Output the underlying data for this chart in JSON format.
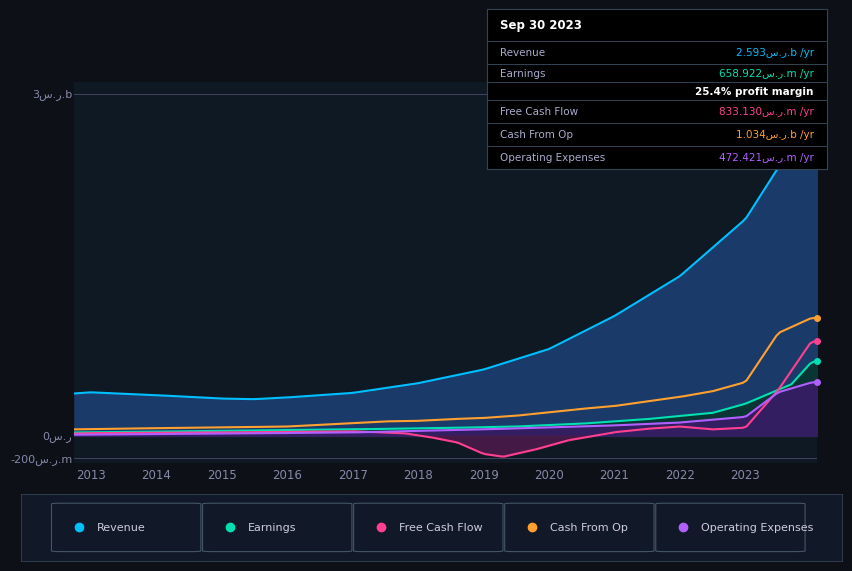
{
  "background_color": "#0d1117",
  "plot_bg_color": "#0f1923",
  "ylabel_top": "3س.ر.b",
  "ylabel_zero": "0س.ر",
  "ylabel_neg": "-200س.ر.m",
  "x_labels": [
    "2013",
    "2014",
    "2015",
    "2016",
    "2017",
    "2018",
    "2019",
    "2020",
    "2021",
    "2022",
    "2023"
  ],
  "legend": [
    {
      "label": "Revenue",
      "color": "#00bfff"
    },
    {
      "label": "Earnings",
      "color": "#00e0b0"
    },
    {
      "label": "Free Cash Flow",
      "color": "#ff4090"
    },
    {
      "label": "Cash From Op",
      "color": "#ffa030"
    },
    {
      "label": "Operating Expenses",
      "color": "#b060ff"
    }
  ],
  "info_title": "Sep 30 2023",
  "info_rows": [
    {
      "label": "Revenue",
      "value": "2.593س.ر.b /yr",
      "color": "#00bfff",
      "bold_label": false
    },
    {
      "label": "Earnings",
      "value": "658.922س.ر.m /yr",
      "color": "#00e0b0",
      "bold_label": false
    },
    {
      "label": "",
      "value": "25.4% profit margin",
      "color": "#ffffff",
      "bold_label": true
    },
    {
      "label": "Free Cash Flow",
      "value": "833.130س.ر.m /yr",
      "color": "#ff4090",
      "bold_label": false
    },
    {
      "label": "Cash From Op",
      "value": "1.034س.ر.b /yr",
      "color": "#ffa030",
      "bold_label": false
    },
    {
      "label": "Operating Expenses",
      "value": "472.421س.ر.m /yr",
      "color": "#b060ff",
      "bold_label": false
    }
  ]
}
